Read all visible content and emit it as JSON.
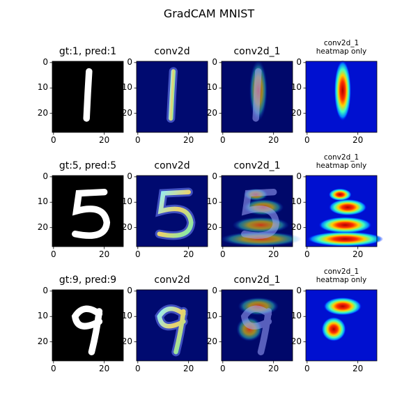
{
  "title": "GradCAM MNIST",
  "chart_data": [
    {
      "type": "image",
      "title": "gt:1, pred:1",
      "xlim": [
        -0.5,
        27.5
      ],
      "ylim": [
        27.5,
        -0.5
      ],
      "xticks": [
        0,
        20
      ],
      "yticks": [
        0,
        10,
        20
      ]
    },
    {
      "type": "image",
      "title": "conv2d",
      "xlim": [
        -0.5,
        27.5
      ],
      "ylim": [
        27.5,
        -0.5
      ],
      "xticks": [
        0,
        20
      ],
      "yticks": [
        0,
        10,
        20
      ]
    },
    {
      "type": "image",
      "title": "conv2d_1",
      "xlim": [
        -0.5,
        27.5
      ],
      "ylim": [
        27.5,
        -0.5
      ],
      "xticks": [
        0,
        20
      ],
      "yticks": [
        0,
        10,
        20
      ]
    },
    {
      "type": "image",
      "title": "conv2d_1\nheatmap only",
      "xlim": [
        -0.5,
        27.5
      ],
      "ylim": [
        27.5,
        -0.5
      ],
      "xticks": [
        0,
        20
      ],
      "yticks": [
        0,
        10,
        20
      ]
    },
    {
      "type": "image",
      "title": "gt:5, pred:5",
      "xlim": [
        -0.5,
        27.5
      ],
      "ylim": [
        27.5,
        -0.5
      ],
      "xticks": [
        0,
        20
      ],
      "yticks": [
        0,
        10,
        20
      ]
    },
    {
      "type": "image",
      "title": "conv2d",
      "xlim": [
        -0.5,
        27.5
      ],
      "ylim": [
        27.5,
        -0.5
      ],
      "xticks": [
        0,
        20
      ],
      "yticks": [
        0,
        10,
        20
      ]
    },
    {
      "type": "image",
      "title": "conv2d_1",
      "xlim": [
        -0.5,
        27.5
      ],
      "ylim": [
        27.5,
        -0.5
      ],
      "xticks": [
        0,
        20
      ],
      "yticks": [
        0,
        10,
        20
      ]
    },
    {
      "type": "image",
      "title": "conv2d_1\nheatmap only",
      "xlim": [
        -0.5,
        27.5
      ],
      "ylim": [
        27.5,
        -0.5
      ],
      "xticks": [
        0,
        20
      ],
      "yticks": [
        0,
        10,
        20
      ]
    },
    {
      "type": "image",
      "title": "gt:9, pred:9",
      "xlim": [
        -0.5,
        27.5
      ],
      "ylim": [
        27.5,
        -0.5
      ],
      "xticks": [
        0,
        20
      ],
      "yticks": [
        0,
        10,
        20
      ]
    },
    {
      "type": "image",
      "title": "conv2d",
      "xlim": [
        -0.5,
        27.5
      ],
      "ylim": [
        27.5,
        -0.5
      ],
      "xticks": [
        0,
        20
      ],
      "yticks": [
        0,
        10,
        20
      ]
    },
    {
      "type": "image",
      "title": "conv2d_1",
      "xlim": [
        -0.5,
        27.5
      ],
      "ylim": [
        27.5,
        -0.5
      ],
      "xticks": [
        0,
        20
      ],
      "yticks": [
        0,
        10,
        20
      ]
    },
    {
      "type": "image",
      "title": "conv2d_1\nheatmap only",
      "xlim": [
        -0.5,
        27.5
      ],
      "ylim": [
        27.5,
        -0.5
      ],
      "xticks": [
        0,
        20
      ],
      "yticks": [
        0,
        10,
        20
      ]
    }
  ]
}
